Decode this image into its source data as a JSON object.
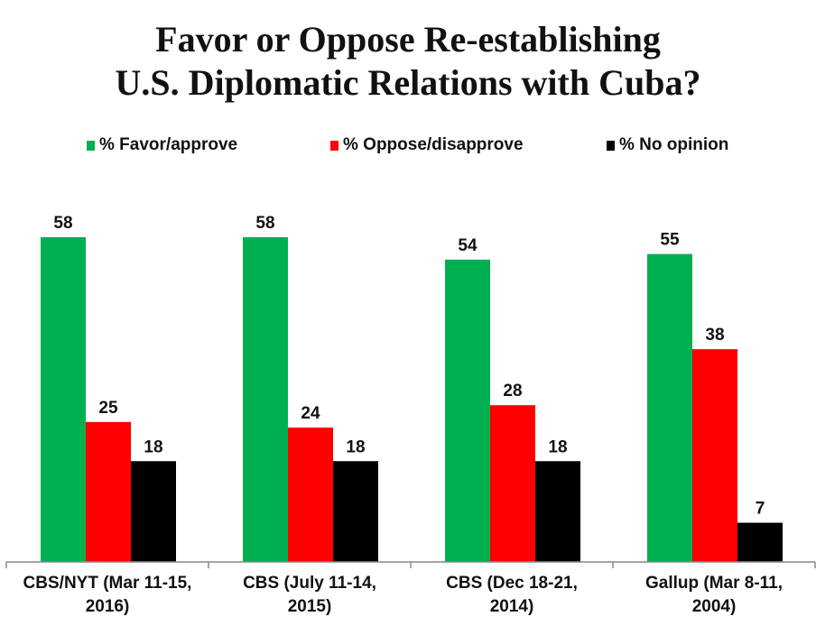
{
  "title_line1": "Favor or Oppose Re-establishing",
  "title_line2": "U.S. Diplomatic Relations with Cuba?",
  "chart_data": {
    "type": "bar",
    "title": "Favor or Oppose Re-establishing U.S. Diplomatic Relations with Cuba?",
    "xlabel": "",
    "ylabel": "",
    "ylim": [
      0,
      60
    ],
    "grid": false,
    "legend_position": "top",
    "categories": [
      [
        "CBS/NYT (Mar 11-15,",
        "2016)"
      ],
      [
        "CBS (July 11-14,",
        "2015)"
      ],
      [
        "CBS (Dec 18-21,",
        "2014)"
      ],
      [
        "Gallup (Mar 8-11,",
        "2004)"
      ]
    ],
    "series": [
      {
        "name": "% Favor/approve",
        "color": "#00b050",
        "values": [
          58,
          58,
          54,
          55
        ]
      },
      {
        "name": "% Oppose/disapprove",
        "color": "#ff0000",
        "values": [
          25,
          24,
          28,
          38
        ]
      },
      {
        "name": "% No opinion",
        "color": "#000000",
        "values": [
          18,
          18,
          18,
          7
        ]
      }
    ]
  }
}
